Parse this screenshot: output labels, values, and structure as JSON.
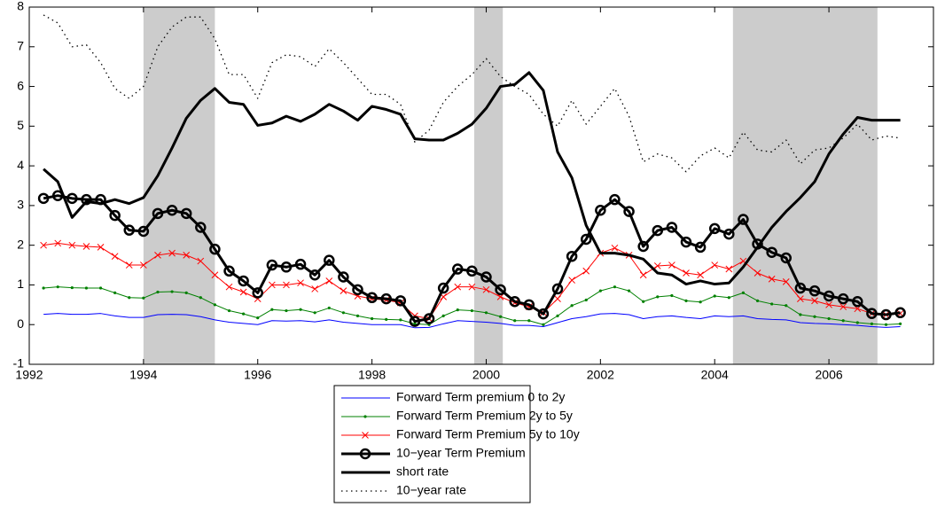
{
  "chart_data": {
    "type": "line",
    "x": [
      1992.25,
      1992.5,
      1992.75,
      1993,
      1993.25,
      1993.5,
      1993.75,
      1994,
      1994.25,
      1994.5,
      1994.75,
      1995,
      1995.25,
      1995.5,
      1995.75,
      1996,
      1996.25,
      1996.5,
      1996.75,
      1997,
      1997.25,
      1997.5,
      1997.75,
      1998,
      1998.25,
      1998.5,
      1998.75,
      1999,
      1999.25,
      1999.5,
      1999.75,
      2000,
      2000.25,
      2000.5,
      2000.75,
      2001,
      2001.25,
      2001.5,
      2001.75,
      2002,
      2002.25,
      2002.5,
      2002.75,
      2003,
      2003.25,
      2003.5,
      2003.75,
      2004,
      2004.25,
      2004.5,
      2004.75,
      2005,
      2005.25,
      2005.5,
      2005.75,
      2006,
      2006.25,
      2006.5,
      2006.75,
      2007,
      2007.25
    ],
    "series": [
      {
        "name": "Forward Term premium 0 to 2y",
        "color": "#0000ff",
        "width": 1,
        "marker": "none",
        "dash": "solid",
        "values": [
          0.26,
          0.28,
          0.26,
          0.26,
          0.28,
          0.22,
          0.18,
          0.18,
          0.25,
          0.26,
          0.25,
          0.2,
          0.12,
          0.06,
          0.03,
          0.0,
          0.1,
          0.09,
          0.1,
          0.07,
          0.12,
          0.06,
          0.03,
          0.0,
          0.0,
          0.0,
          -0.08,
          -0.07,
          0.02,
          0.1,
          0.08,
          0.06,
          0.03,
          -0.02,
          -0.02,
          -0.05,
          0.05,
          0.15,
          0.2,
          0.27,
          0.28,
          0.25,
          0.15,
          0.2,
          0.22,
          0.18,
          0.15,
          0.22,
          0.2,
          0.22,
          0.15,
          0.13,
          0.12,
          0.05,
          0.03,
          0.02,
          0.0,
          -0.02,
          -0.05,
          -0.07,
          -0.05
        ]
      },
      {
        "name": "Forward Term Premium 2y to 5y",
        "color": "#008000",
        "width": 1,
        "marker": "dot",
        "dash": "solid",
        "values": [
          0.92,
          0.95,
          0.93,
          0.92,
          0.92,
          0.8,
          0.68,
          0.67,
          0.82,
          0.83,
          0.8,
          0.68,
          0.5,
          0.35,
          0.27,
          0.17,
          0.38,
          0.35,
          0.38,
          0.3,
          0.42,
          0.3,
          0.22,
          0.15,
          0.13,
          0.12,
          0.02,
          0.0,
          0.22,
          0.37,
          0.35,
          0.3,
          0.2,
          0.1,
          0.1,
          0.0,
          0.22,
          0.48,
          0.62,
          0.85,
          0.95,
          0.85,
          0.58,
          0.7,
          0.73,
          0.6,
          0.57,
          0.72,
          0.68,
          0.8,
          0.6,
          0.52,
          0.48,
          0.25,
          0.2,
          0.15,
          0.1,
          0.05,
          0.02,
          0.0,
          0.02
        ]
      },
      {
        "name": "Forward Term Premium 5y to 10y",
        "color": "#ff0000",
        "width": 1,
        "marker": "x",
        "dash": "solid",
        "values": [
          2.0,
          2.05,
          2.0,
          1.97,
          1.95,
          1.72,
          1.5,
          1.5,
          1.75,
          1.8,
          1.75,
          1.6,
          1.25,
          0.95,
          0.82,
          0.65,
          1.0,
          1.0,
          1.05,
          0.9,
          1.1,
          0.85,
          0.72,
          0.65,
          0.62,
          0.55,
          0.22,
          0.15,
          0.7,
          0.95,
          0.95,
          0.88,
          0.7,
          0.55,
          0.45,
          0.3,
          0.65,
          1.12,
          1.35,
          1.8,
          1.93,
          1.75,
          1.25,
          1.48,
          1.5,
          1.3,
          1.25,
          1.5,
          1.4,
          1.6,
          1.3,
          1.15,
          1.08,
          0.65,
          0.6,
          0.5,
          0.45,
          0.4,
          0.28,
          0.25,
          0.28
        ]
      },
      {
        "name": "10−year Term Premium",
        "color": "#000000",
        "width": 3,
        "marker": "circle",
        "dash": "solid",
        "values": [
          3.18,
          3.25,
          3.18,
          3.15,
          3.15,
          2.75,
          2.38,
          2.35,
          2.8,
          2.88,
          2.8,
          2.45,
          1.9,
          1.35,
          1.1,
          0.8,
          1.5,
          1.45,
          1.52,
          1.25,
          1.62,
          1.2,
          0.88,
          0.68,
          0.65,
          0.6,
          0.08,
          0.15,
          0.92,
          1.4,
          1.35,
          1.2,
          0.88,
          0.58,
          0.5,
          0.27,
          0.9,
          1.72,
          2.15,
          2.88,
          3.15,
          2.85,
          1.97,
          2.37,
          2.45,
          2.08,
          1.95,
          2.42,
          2.28,
          2.65,
          2.03,
          1.82,
          1.68,
          0.92,
          0.85,
          0.72,
          0.65,
          0.58,
          0.28,
          0.25,
          0.3
        ]
      },
      {
        "name": "short rate",
        "color": "#000000",
        "width": 3,
        "marker": "none",
        "dash": "solid",
        "values": [
          3.92,
          3.6,
          2.7,
          3.1,
          3.05,
          3.15,
          3.05,
          3.2,
          3.75,
          4.45,
          5.2,
          5.65,
          5.95,
          5.6,
          5.55,
          5.02,
          5.08,
          5.25,
          5.12,
          5.3,
          5.55,
          5.38,
          5.15,
          5.5,
          5.42,
          5.3,
          4.68,
          4.65,
          4.65,
          4.82,
          5.05,
          5.45,
          6.0,
          6.05,
          6.35,
          5.9,
          4.35,
          3.7,
          2.5,
          1.8,
          1.8,
          1.75,
          1.65,
          1.3,
          1.25,
          1.02,
          1.1,
          1.02,
          1.05,
          1.45,
          1.95,
          2.45,
          2.85,
          3.2,
          3.6,
          4.3,
          4.8,
          5.22,
          5.15,
          5.15,
          5.15
        ]
      },
      {
        "name": "10−year rate",
        "color": "#000000",
        "width": 1.3,
        "marker": "none",
        "dash": "dotted",
        "values": [
          7.8,
          7.6,
          7.0,
          7.05,
          6.6,
          5.95,
          5.7,
          6.0,
          7.0,
          7.5,
          7.75,
          7.75,
          7.2,
          6.3,
          6.3,
          5.7,
          6.6,
          6.8,
          6.75,
          6.5,
          6.95,
          6.6,
          6.2,
          5.8,
          5.8,
          5.55,
          4.6,
          4.9,
          5.6,
          6.0,
          6.3,
          6.7,
          6.25,
          6.0,
          5.8,
          5.3,
          5.0,
          5.65,
          5.05,
          5.5,
          5.95,
          5.25,
          4.1,
          4.3,
          4.2,
          3.85,
          4.25,
          4.45,
          4.2,
          4.85,
          4.4,
          4.35,
          4.65,
          4.05,
          4.4,
          4.45,
          4.7,
          5.05,
          4.65,
          4.75,
          4.7
        ]
      }
    ],
    "shaded_regions": [
      [
        1994.0,
        1995.25
      ],
      [
        1999.79,
        2000.29
      ],
      [
        2004.32,
        2006.85
      ]
    ],
    "shade_color": "#cccccc",
    "xlim": [
      1992,
      2007.83
    ],
    "ylim": [
      -1,
      8
    ],
    "xticks": [
      1992,
      1994,
      1996,
      1998,
      2000,
      2002,
      2004,
      2006
    ],
    "yticks": [
      -1,
      0,
      1,
      2,
      3,
      4,
      5,
      6,
      7,
      8
    ],
    "legend": "bottom"
  }
}
